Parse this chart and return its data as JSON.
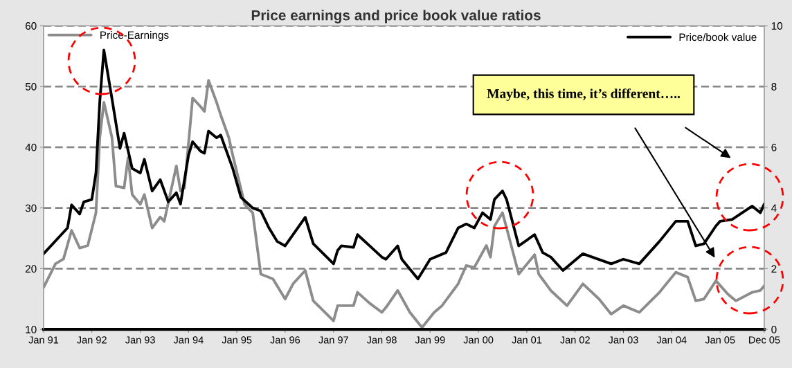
{
  "chart_data": {
    "type": "line",
    "title": "Price earnings and price book value ratios",
    "xlim": [
      "1991-01",
      "2005-12"
    ],
    "xticks": [
      {
        "value": "1991-01",
        "label": "Jan 91"
      },
      {
        "value": "1992-01",
        "label": "Jan 92"
      },
      {
        "value": "1993-01",
        "label": "Jan 93"
      },
      {
        "value": "1994-01",
        "label": "Jan 94"
      },
      {
        "value": "1995-01",
        "label": "Jan 95"
      },
      {
        "value": "1996-01",
        "label": "Jan 96"
      },
      {
        "value": "1997-01",
        "label": "Jan 97"
      },
      {
        "value": "1998-01",
        "label": "Jan 98"
      },
      {
        "value": "1999-01",
        "label": "Jan 99"
      },
      {
        "value": "2000-01",
        "label": "Jan 00"
      },
      {
        "value": "2001-01",
        "label": "Jan 01"
      },
      {
        "value": "2002-01",
        "label": "Jan 02"
      },
      {
        "value": "2003-01",
        "label": "Jan 03"
      },
      {
        "value": "2004-01",
        "label": "Jan 04"
      },
      {
        "value": "2005-01",
        "label": "Jan 05"
      },
      {
        "value": "2005-12",
        "label": "Dec 05"
      }
    ],
    "ylim": [
      10,
      60
    ],
    "yticks": [
      10,
      20,
      30,
      40,
      50,
      60
    ],
    "y2lim": [
      0,
      10
    ],
    "y2ticks": [
      0,
      2,
      4,
      6,
      8,
      10
    ],
    "grid": "y",
    "legend": "top",
    "line_style": "solid",
    "annotations": [
      "Maybe, this time, it’s different….."
    ],
    "series": [
      {
        "name": "Price-Earnings",
        "color": "#8c8c8c",
        "x": [
          "1991-01",
          "1991-04",
          "1991-06",
          "1991-08",
          "1991-10",
          "1991-12",
          "1992-02",
          "1992-03",
          "1992-04",
          "1992-06",
          "1992-07",
          "1992-09",
          "1992-10",
          "1992-11",
          "1993-01",
          "1993-02",
          "1993-04",
          "1993-06",
          "1993-07",
          "1993-10",
          "1993-11",
          "1993-12",
          "1994-02",
          "1994-04",
          "1994-05",
          "1994-06",
          "1994-08",
          "1994-09",
          "1994-11",
          "1994-12",
          "1995-03",
          "1995-05",
          "1995-07",
          "1995-10",
          "1995-11",
          "1996-01",
          "1996-03",
          "1996-06",
          "1996-08",
          "1997-01",
          "1997-02",
          "1997-06",
          "1997-07",
          "1997-10",
          "1998-01",
          "1998-02",
          "1998-05",
          "1998-08",
          "1998-11",
          "1999-02",
          "1999-04",
          "1999-08",
          "1999-10",
          "1999-12",
          "2000-03",
          "2000-04",
          "2000-05",
          "2000-07",
          "2000-08",
          "2000-11",
          "2001-03",
          "2001-04",
          "2001-07",
          "2001-11",
          "2002-03",
          "2002-07",
          "2002-10",
          "2003-01",
          "2003-05",
          "2003-10",
          "2004-02",
          "2004-05",
          "2004-07",
          "2004-09",
          "2004-12",
          "2005-03",
          "2005-05",
          "2005-09",
          "2005-11",
          "2005-12"
        ],
        "values": [
          16.9,
          20.8,
          21.6,
          26.3,
          23.4,
          23.8,
          29.2,
          41.6,
          47.4,
          41.6,
          33.6,
          33.3,
          38.3,
          32.2,
          30.6,
          32.2,
          26.7,
          28.5,
          27.8,
          36.9,
          32.8,
          33.3,
          48.1,
          46.7,
          45.9,
          51.0,
          47.4,
          45.3,
          41.6,
          38.7,
          30.6,
          29.2,
          19.1,
          18.3,
          17.2,
          15.0,
          17.5,
          19.7,
          14.7,
          11.4,
          13.9,
          13.9,
          16.1,
          14.3,
          12.8,
          13.6,
          16.4,
          12.8,
          10.3,
          12.8,
          13.9,
          17.5,
          20.5,
          20.2,
          23.8,
          21.9,
          27.0,
          29.2,
          26.7,
          19.1,
          22.3,
          19.1,
          16.4,
          13.9,
          17.5,
          15.0,
          12.5,
          13.9,
          12.8,
          16.1,
          19.4,
          18.6,
          14.7,
          15.0,
          18.0,
          15.8,
          14.7,
          16.1,
          16.4,
          17.2
        ]
      },
      {
        "name": "Price/book value",
        "color": "#000000",
        "axis": "y2",
        "x": [
          "1991-01",
          "1991-07",
          "1991-08",
          "1991-10",
          "1991-11",
          "1992-01",
          "1992-02",
          "1992-03",
          "1992-04",
          "1992-06",
          "1992-08",
          "1992-09",
          "1992-11",
          "1993-01",
          "1993-02",
          "1993-04",
          "1993-06",
          "1993-08",
          "1993-10",
          "1993-11",
          "1994-01",
          "1994-02",
          "1994-04",
          "1994-05",
          "1994-06",
          "1994-08",
          "1994-09",
          "1994-12",
          "1995-02",
          "1995-05",
          "1995-07",
          "1995-09",
          "1995-11",
          "1996-01",
          "1996-03",
          "1996-06",
          "1996-08",
          "1997-01",
          "1997-02",
          "1997-03",
          "1997-06",
          "1997-07",
          "1997-10",
          "1998-01",
          "1998-02",
          "1998-05",
          "1998-06",
          "1998-10",
          "1999-01",
          "1999-05",
          "1999-08",
          "1999-10",
          "1999-12",
          "2000-02",
          "2000-04",
          "2000-05",
          "2000-07",
          "2000-08",
          "2000-11",
          "2001-03",
          "2001-05",
          "2001-07",
          "2001-10",
          "2002-03",
          "2002-10",
          "2003-01",
          "2003-05",
          "2003-10",
          "2004-02",
          "2004-05",
          "2004-07",
          "2004-09",
          "2004-12",
          "2005-01",
          "2005-04",
          "2005-09",
          "2005-11",
          "2005-12"
        ],
        "values": [
          2.49,
          3.34,
          4.1,
          3.8,
          4.2,
          4.28,
          5.15,
          7.5,
          9.2,
          7.6,
          5.96,
          6.46,
          5.3,
          5.15,
          5.6,
          4.56,
          4.93,
          4.2,
          4.5,
          4.13,
          5.74,
          6.18,
          5.87,
          5.8,
          6.53,
          6.31,
          6.4,
          5.3,
          4.35,
          4.0,
          3.9,
          3.34,
          2.9,
          2.75,
          3.12,
          3.69,
          2.82,
          2.16,
          2.6,
          2.75,
          2.7,
          3.12,
          2.75,
          2.38,
          2.31,
          2.75,
          2.31,
          1.66,
          2.31,
          2.53,
          3.34,
          3.47,
          3.34,
          3.84,
          3.62,
          4.28,
          4.56,
          4.28,
          2.75,
          3.12,
          2.53,
          2.38,
          1.94,
          2.49,
          2.16,
          2.31,
          2.16,
          2.9,
          3.56,
          3.56,
          2.75,
          2.82,
          3.41,
          3.56,
          3.62,
          4.06,
          3.84,
          4.13
        ]
      }
    ]
  }
}
